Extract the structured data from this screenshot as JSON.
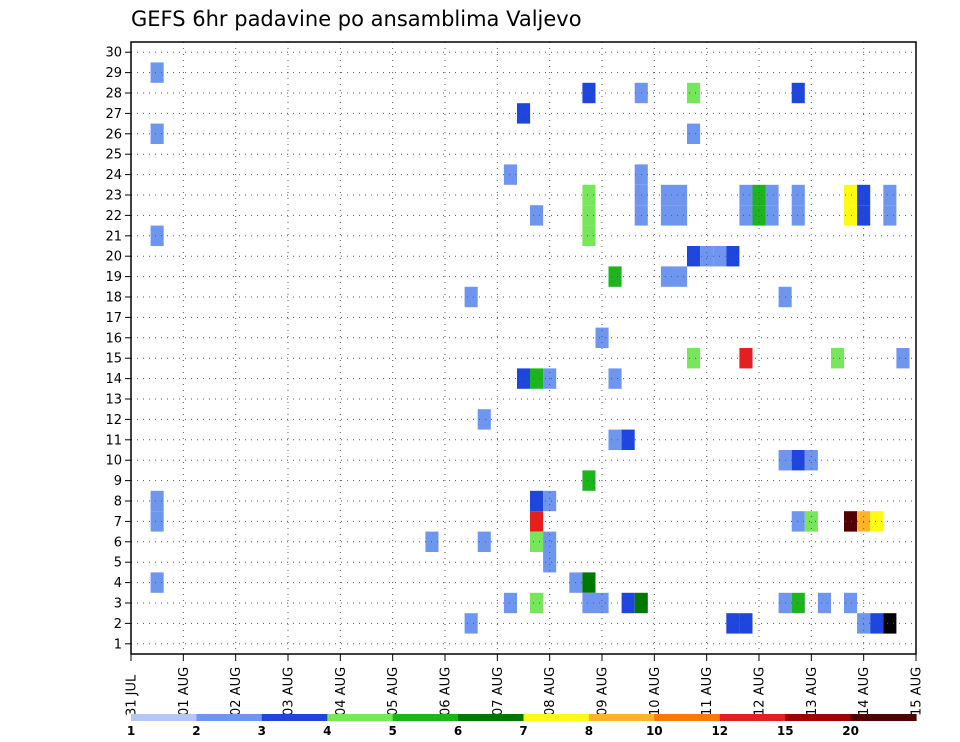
{
  "chart_data": {
    "type": "heatmap",
    "title": "GEFS 6hr padavine po ansamblima Valjevo",
    "xlabel": "",
    "ylabel": "",
    "x_tick_labels": [
      "31 JUL",
      "01 AUG",
      "02 AUG",
      "03 AUG",
      "04 AUG",
      "05 AUG",
      "06 AUG",
      "07 AUG",
      "08 AUG",
      "09 AUG",
      "10 AUG",
      "11 AUG",
      "12 AUG",
      "13 AUG",
      "14 AUG",
      "15 AUG"
    ],
    "xlim_days": [
      0,
      15
    ],
    "x_step_days": 0.25,
    "y_ticks": [
      1,
      2,
      3,
      4,
      5,
      6,
      7,
      8,
      9,
      10,
      11,
      12,
      13,
      14,
      15,
      16,
      17,
      18,
      19,
      20,
      21,
      22,
      23,
      24,
      25,
      26,
      27,
      28,
      29,
      30
    ],
    "ylim": [
      0.5,
      30.5
    ],
    "grid": true,
    "colorbar": {
      "position": "bottom",
      "labels": [
        "1",
        "2",
        "3",
        "4",
        "5",
        "6",
        "7",
        "8",
        "10",
        "12",
        "15",
        "20"
      ],
      "colors": [
        "#b4c8f5",
        "#6e96ee",
        "#1e46dc",
        "#78e65a",
        "#1eb41e",
        "#007800",
        "#fffa14",
        "#ffb428",
        "#ff780a",
        "#e61e1e",
        "#a00000",
        "#500000"
      ]
    },
    "points": [
      [
        0.5,
        29,
        1
      ],
      [
        0.5,
        26,
        1
      ],
      [
        0.5,
        21,
        1
      ],
      [
        0.5,
        8,
        1
      ],
      [
        0.5,
        7,
        1
      ],
      [
        0.5,
        4,
        1
      ],
      [
        5.75,
        6,
        1
      ],
      [
        6.5,
        18,
        1
      ],
      [
        6.5,
        2,
        1
      ],
      [
        6.75,
        12,
        1
      ],
      [
        6.75,
        6,
        1
      ],
      [
        7.25,
        24,
        1
      ],
      [
        7.25,
        3,
        1
      ],
      [
        7.5,
        27,
        2
      ],
      [
        7.5,
        14,
        2
      ],
      [
        7.75,
        22,
        1
      ],
      [
        7.75,
        14,
        4
      ],
      [
        7.75,
        8,
        2
      ],
      [
        7.75,
        7,
        9
      ],
      [
        7.75,
        6,
        3
      ],
      [
        7.75,
        3,
        3
      ],
      [
        8.0,
        14,
        1
      ],
      [
        8.0,
        8,
        1
      ],
      [
        8.0,
        6,
        1
      ],
      [
        8.0,
        5,
        1
      ],
      [
        8.5,
        4,
        1
      ],
      [
        8.75,
        28,
        2
      ],
      [
        8.75,
        23,
        3
      ],
      [
        8.75,
        22,
        3
      ],
      [
        8.75,
        21,
        3
      ],
      [
        8.75,
        9,
        4
      ],
      [
        8.75,
        4,
        5
      ],
      [
        8.75,
        3,
        1
      ],
      [
        9.0,
        16,
        1
      ],
      [
        9.0,
        3,
        1
      ],
      [
        9.25,
        19,
        4
      ],
      [
        9.25,
        14,
        1
      ],
      [
        9.25,
        11,
        1
      ],
      [
        9.5,
        11,
        2
      ],
      [
        9.5,
        3,
        2
      ],
      [
        9.75,
        28,
        1
      ],
      [
        9.75,
        24,
        1
      ],
      [
        9.75,
        23,
        1
      ],
      [
        9.75,
        22,
        1
      ],
      [
        9.75,
        3,
        5
      ],
      [
        10.25,
        19,
        1
      ],
      [
        10.25,
        23,
        1
      ],
      [
        10.25,
        22,
        1
      ],
      [
        10.5,
        19,
        1
      ],
      [
        10.5,
        23,
        1
      ],
      [
        10.5,
        22,
        1
      ],
      [
        10.75,
        28,
        3
      ],
      [
        10.75,
        26,
        1
      ],
      [
        10.75,
        20,
        2
      ],
      [
        10.75,
        15,
        3
      ],
      [
        11.0,
        20,
        1
      ],
      [
        11.25,
        20,
        1
      ],
      [
        11.5,
        20,
        2
      ],
      [
        11.5,
        2,
        2
      ],
      [
        11.75,
        15,
        9
      ],
      [
        11.75,
        23,
        1
      ],
      [
        11.75,
        22,
        1
      ],
      [
        11.75,
        2,
        2
      ],
      [
        12.0,
        23,
        4
      ],
      [
        12.0,
        22,
        4
      ],
      [
        12.25,
        23,
        1
      ],
      [
        12.25,
        22,
        1
      ],
      [
        12.5,
        18,
        1
      ],
      [
        12.5,
        10,
        1
      ],
      [
        12.5,
        3,
        1
      ],
      [
        12.75,
        28,
        2
      ],
      [
        12.75,
        23,
        1
      ],
      [
        12.75,
        22,
        1
      ],
      [
        12.75,
        10,
        2
      ],
      [
        12.75,
        7,
        1
      ],
      [
        12.75,
        3,
        4
      ],
      [
        13.0,
        10,
        1
      ],
      [
        13.0,
        7,
        3
      ],
      [
        13.25,
        3,
        1
      ],
      [
        13.5,
        15,
        3
      ],
      [
        13.75,
        23,
        6
      ],
      [
        13.75,
        22,
        6
      ],
      [
        13.75,
        7,
        11
      ],
      [
        13.75,
        3,
        1
      ],
      [
        14.0,
        23,
        2
      ],
      [
        14.0,
        22,
        2
      ],
      [
        14.0,
        7,
        7
      ],
      [
        14.0,
        2,
        1
      ],
      [
        14.25,
        7,
        6
      ],
      [
        14.25,
        2,
        2
      ],
      [
        14.5,
        23,
        1
      ],
      [
        14.5,
        22,
        1
      ],
      [
        14.5,
        2,
        12
      ],
      [
        14.75,
        15,
        1
      ]
    ]
  }
}
